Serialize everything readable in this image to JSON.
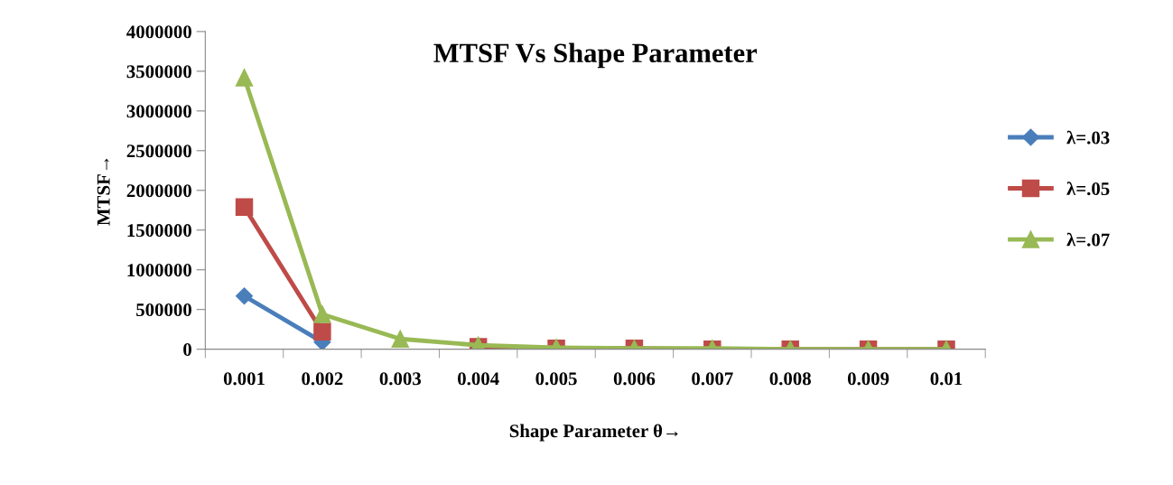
{
  "chart_data": {
    "type": "line",
    "title": "MTSF Vs Shape Parameter",
    "xlabel": "Shape Parameter θ→",
    "ylabel": "MTSF→",
    "categories": [
      "0.001",
      "0.002",
      "0.003",
      "0.004",
      "0.005",
      "0.006",
      "0.007",
      "0.008",
      "0.009",
      "0.01"
    ],
    "series": [
      {
        "name": "λ=.03",
        "color": "#4a7ebb",
        "marker": "diamond",
        "values": [
          670000,
          90000,
          null,
          null,
          null,
          null,
          null,
          null,
          null,
          null
        ]
      },
      {
        "name": "λ=.05",
        "color": "#be4b48",
        "marker": "square",
        "values": [
          1790000,
          220000,
          null,
          30000,
          10000,
          10000,
          0,
          0,
          0,
          0
        ]
      },
      {
        "name": "λ=.07",
        "color": "#98b954",
        "marker": "triangle",
        "values": [
          3420000,
          440000,
          130000,
          50000,
          20000,
          10000,
          10000,
          0,
          0,
          0
        ]
      }
    ],
    "ylim": [
      0,
      4000000
    ],
    "yticks": [
      0,
      500000,
      1000000,
      1500000,
      2000000,
      2500000,
      3000000,
      3500000,
      4000000
    ],
    "grid": false,
    "legend": "right"
  }
}
